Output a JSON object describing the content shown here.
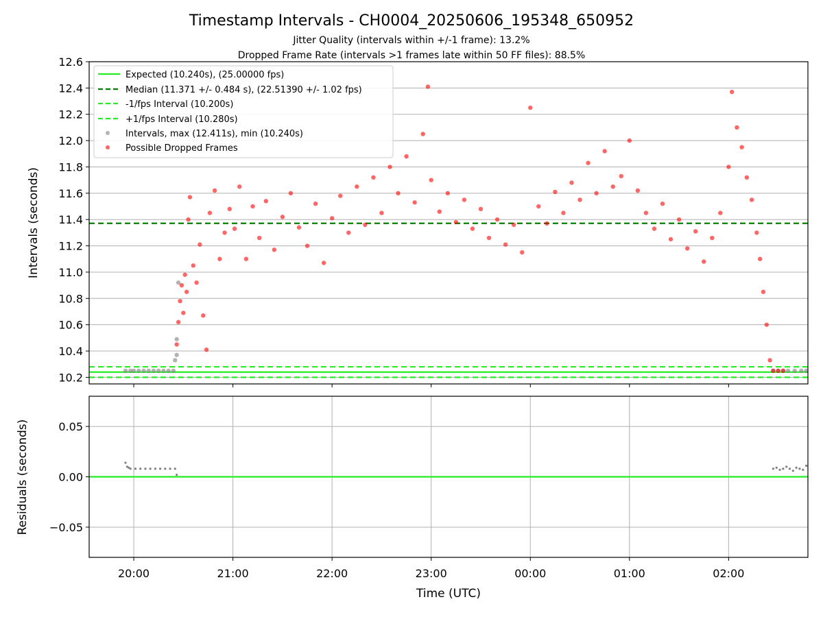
{
  "chart_data": [
    {
      "type": "scatter",
      "title": "Timestamp Intervals - CH0004_20250606_195348_650952",
      "subtitle": [
        "Jitter Quality (intervals within +/-1 frame): 13.2%",
        "Dropped Frame Rate (intervals >1 frames late within 50 FF files): 88.5%"
      ],
      "xlabel": "",
      "ylabel": "Intervals (seconds)",
      "xlim": [
        "19:33",
        "02:48"
      ],
      "ylim": [
        10.15,
        12.6
      ],
      "yticks": [
        10.2,
        10.4,
        10.6,
        10.8,
        11.0,
        11.2,
        11.4,
        11.6,
        11.8,
        12.0,
        12.2,
        12.4,
        12.6
      ],
      "ytick_labels": [
        "10.2",
        "10.4",
        "10.6",
        "10.8",
        "11.0",
        "11.2",
        "11.4",
        "11.6",
        "11.8",
        "12.0",
        "12.2",
        "12.4",
        "12.6"
      ],
      "grid": "horizontal",
      "legend_position": "top-left",
      "reference_lines": [
        {
          "name": "Expected (10.240s), (25.00000 fps)",
          "value": 10.24,
          "style": "solid",
          "color": "#22ee22"
        },
        {
          "name": "Median (11.371 +/- 0.484 s), (22.51390 +/- 1.02 fps)",
          "value": 11.371,
          "style": "dashed",
          "color": "#007f00"
        },
        {
          "name": "-1/fps Interval (10.200s)",
          "value": 10.2,
          "style": "dashed",
          "color": "#22ee22"
        },
        {
          "name": "+1/fps Interval (10.280s)",
          "value": 10.28,
          "style": "dashed",
          "color": "#22ee22"
        }
      ],
      "series": [
        {
          "name": "Intervals, max (12.411s), min (10.240s)",
          "color": "#808080",
          "points": [
            [
              "19:55",
              10.25
            ],
            [
              "19:58",
              10.25
            ],
            [
              "20:00",
              10.25
            ],
            [
              "20:03",
              10.25
            ],
            [
              "20:06",
              10.25
            ],
            [
              "20:09",
              10.25
            ],
            [
              "20:12",
              10.25
            ],
            [
              "20:15",
              10.25
            ],
            [
              "20:18",
              10.25
            ],
            [
              "20:21",
              10.25
            ],
            [
              "20:24",
              10.25
            ],
            [
              "20:25",
              10.33
            ],
            [
              "20:26",
              10.37
            ],
            [
              "20:26",
              10.49
            ],
            [
              "20:27",
              10.92
            ],
            [
              "02:27",
              10.25
            ],
            [
              "02:30",
              10.25
            ],
            [
              "02:33",
              10.25
            ],
            [
              "02:36",
              10.25
            ],
            [
              "02:40",
              10.25
            ],
            [
              "02:44",
              10.25
            ],
            [
              "02:47",
              10.25
            ]
          ]
        },
        {
          "name": "Possible Dropped Frames",
          "color": "#ff0000",
          "points": [
            [
              "20:26",
              10.45
            ],
            [
              "20:27",
              10.62
            ],
            [
              "20:28",
              10.78
            ],
            [
              "20:29",
              10.9
            ],
            [
              "20:30",
              10.69
            ],
            [
              "20:31",
              10.98
            ],
            [
              "20:32",
              10.85
            ],
            [
              "20:33",
              11.4
            ],
            [
              "20:34",
              11.57
            ],
            [
              "20:36",
              11.05
            ],
            [
              "20:38",
              10.92
            ],
            [
              "20:40",
              11.21
            ],
            [
              "20:42",
              10.67
            ],
            [
              "20:44",
              10.41
            ],
            [
              "20:46",
              11.45
            ],
            [
              "20:49",
              11.62
            ],
            [
              "20:52",
              11.1
            ],
            [
              "20:55",
              11.3
            ],
            [
              "20:58",
              11.48
            ],
            [
              "21:01",
              11.33
            ],
            [
              "21:04",
              11.65
            ],
            [
              "21:08",
              11.1
            ],
            [
              "21:12",
              11.5
            ],
            [
              "21:16",
              11.26
            ],
            [
              "21:20",
              11.54
            ],
            [
              "21:25",
              11.17
            ],
            [
              "21:30",
              11.42
            ],
            [
              "21:35",
              11.6
            ],
            [
              "21:40",
              11.34
            ],
            [
              "21:45",
              11.2
            ],
            [
              "21:50",
              11.52
            ],
            [
              "21:55",
              11.07
            ],
            [
              "22:00",
              11.41
            ],
            [
              "22:05",
              11.58
            ],
            [
              "22:10",
              11.3
            ],
            [
              "22:15",
              11.65
            ],
            [
              "22:20",
              11.36
            ],
            [
              "22:25",
              11.72
            ],
            [
              "22:30",
              11.45
            ],
            [
              "22:35",
              11.8
            ],
            [
              "22:40",
              11.6
            ],
            [
              "22:45",
              11.88
            ],
            [
              "22:50",
              11.53
            ],
            [
              "22:55",
              12.05
            ],
            [
              "22:58",
              12.41
            ],
            [
              "23:00",
              11.7
            ],
            [
              "23:05",
              11.46
            ],
            [
              "23:10",
              11.6
            ],
            [
              "23:15",
              11.38
            ],
            [
              "23:20",
              11.55
            ],
            [
              "23:25",
              11.33
            ],
            [
              "23:30",
              11.48
            ],
            [
              "23:35",
              11.26
            ],
            [
              "23:40",
              11.4
            ],
            [
              "23:45",
              11.21
            ],
            [
              "23:50",
              11.36
            ],
            [
              "23:55",
              11.15
            ],
            [
              "00:00",
              12.25
            ],
            [
              "00:05",
              11.5
            ],
            [
              "00:10",
              11.37
            ],
            [
              "00:15",
              11.61
            ],
            [
              "00:20",
              11.45
            ],
            [
              "00:25",
              11.68
            ],
            [
              "00:30",
              11.55
            ],
            [
              "00:35",
              11.83
            ],
            [
              "00:40",
              11.6
            ],
            [
              "00:45",
              11.92
            ],
            [
              "00:50",
              11.65
            ],
            [
              "00:55",
              11.73
            ],
            [
              "01:00",
              12.0
            ],
            [
              "01:05",
              11.62
            ],
            [
              "01:10",
              11.45
            ],
            [
              "01:15",
              11.33
            ],
            [
              "01:20",
              11.52
            ],
            [
              "01:25",
              11.25
            ],
            [
              "01:30",
              11.4
            ],
            [
              "01:35",
              11.18
            ],
            [
              "01:40",
              11.31
            ],
            [
              "01:45",
              11.08
            ],
            [
              "01:50",
              11.26
            ],
            [
              "01:55",
              11.45
            ],
            [
              "02:00",
              11.8
            ],
            [
              "02:02",
              12.37
            ],
            [
              "02:05",
              12.1
            ],
            [
              "02:08",
              11.95
            ],
            [
              "02:11",
              11.72
            ],
            [
              "02:14",
              11.55
            ],
            [
              "02:17",
              11.3
            ],
            [
              "02:19",
              11.1
            ],
            [
              "02:21",
              10.85
            ],
            [
              "02:23",
              10.6
            ],
            [
              "02:25",
              10.33
            ],
            [
              "02:27",
              10.25
            ],
            [
              "02:30",
              10.25
            ],
            [
              "02:33",
              10.25
            ]
          ]
        }
      ]
    },
    {
      "type": "scatter",
      "xlabel": "Time (UTC)",
      "ylabel": "Residuals (seconds)",
      "xlim": [
        "19:33",
        "02:48"
      ],
      "ylim": [
        -0.08,
        0.08
      ],
      "yticks": [
        -0.05,
        0.0,
        0.05
      ],
      "ytick_labels": [
        "−0.05",
        "0.00",
        "0.05"
      ],
      "xticks": [
        "20:00",
        "21:00",
        "22:00",
        "23:00",
        "00:00",
        "01:00",
        "02:00"
      ],
      "grid": "both",
      "reference_lines": [
        {
          "value": 0.0,
          "style": "solid",
          "color": "#22ee22"
        }
      ],
      "series": [
        {
          "color": "#808080",
          "points": [
            [
              "19:55",
              0.014
            ],
            [
              "19:56",
              0.01
            ],
            [
              "19:57",
              0.009
            ],
            [
              "19:58",
              0.008
            ],
            [
              "20:01",
              0.008
            ],
            [
              "20:04",
              0.008
            ],
            [
              "20:07",
              0.008
            ],
            [
              "20:10",
              0.008
            ],
            [
              "20:13",
              0.008
            ],
            [
              "20:16",
              0.008
            ],
            [
              "20:19",
              0.008
            ],
            [
              "20:22",
              0.008
            ],
            [
              "20:25",
              0.008
            ],
            [
              "20:26",
              0.002
            ],
            [
              "02:27",
              0.008
            ],
            [
              "02:29",
              0.009
            ],
            [
              "02:31",
              0.007
            ],
            [
              "02:33",
              0.008
            ],
            [
              "02:35",
              0.01
            ],
            [
              "02:37",
              0.008
            ],
            [
              "02:39",
              0.006
            ],
            [
              "02:41",
              0.009
            ],
            [
              "02:43",
              0.008
            ],
            [
              "02:45",
              0.007
            ],
            [
              "02:47",
              0.011
            ]
          ]
        }
      ]
    }
  ]
}
